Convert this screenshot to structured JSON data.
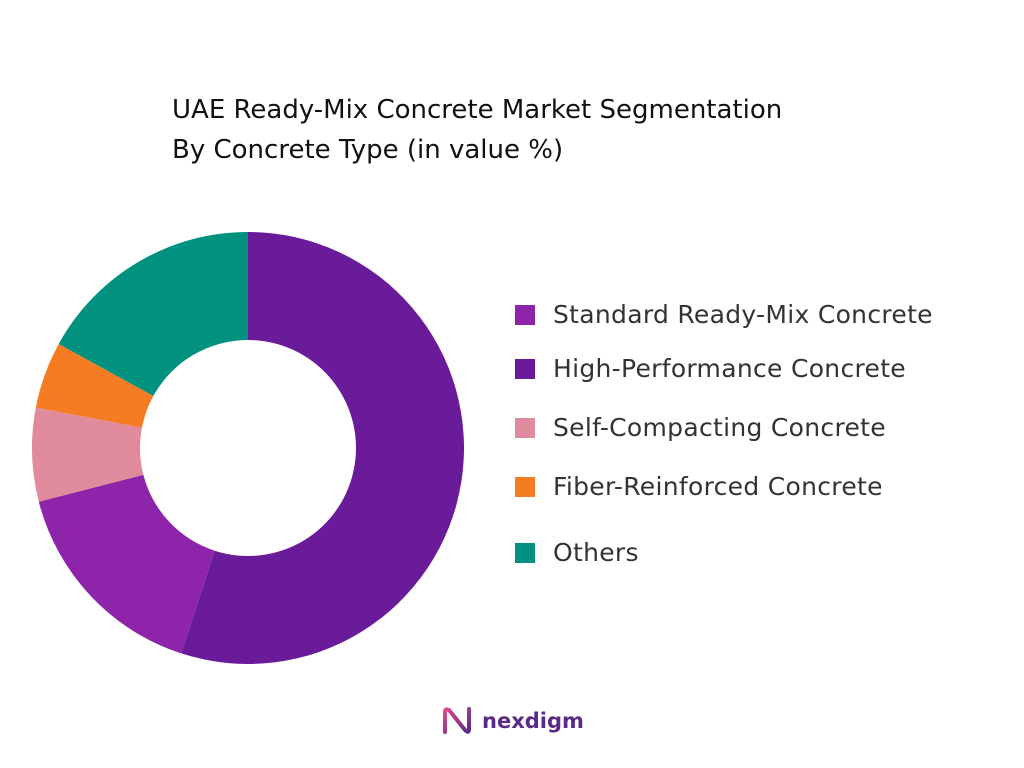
{
  "chart_data": {
    "type": "pie",
    "title": "UAE Ready-Mix Concrete Market Segmentation",
    "subtitle": "By Concrete Type (in value %)",
    "donut": true,
    "legend_position": "right",
    "categories": [
      "Standard Ready-Mix Concrete",
      "High-Performance Concrete",
      "Self-Compacting Concrete",
      "Fiber-Reinforced Concrete",
      "Others"
    ],
    "values": [
      16,
      55,
      7,
      5,
      17
    ],
    "draw_order": [
      1,
      0,
      2,
      3,
      4
    ],
    "colors": [
      "#8e24aa",
      "#6a1b9a",
      "#e08a9e",
      "#f57c22",
      "#00927e"
    ]
  },
  "logo": {
    "text": "nexdigm",
    "color": "#5b2a86"
  }
}
